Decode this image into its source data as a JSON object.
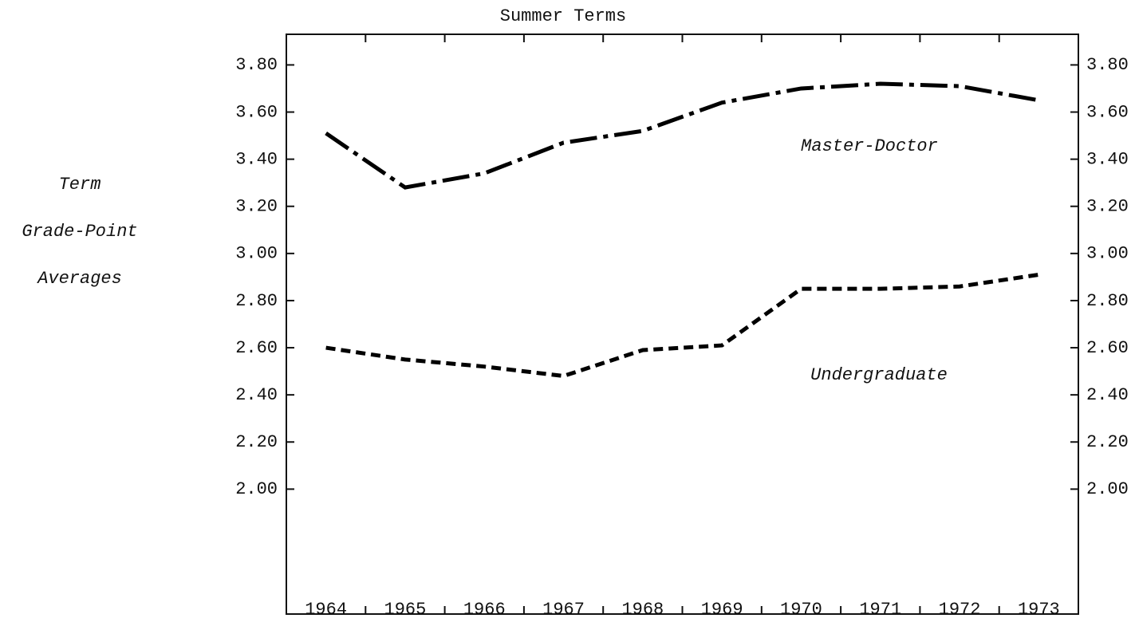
{
  "chart_data": {
    "type": "line",
    "title": "Summer Terms",
    "ylabel": [
      "Term",
      "Grade-Point",
      "Averages"
    ],
    "categories": [
      "1964",
      "1965",
      "1966",
      "1967",
      "1968",
      "1969",
      "1970",
      "1971",
      "1972",
      "1973"
    ],
    "series": [
      {
        "name": "Master-Doctor",
        "color": "#000000",
        "style": "dashdot",
        "values": [
          3.51,
          3.28,
          3.34,
          3.47,
          3.52,
          3.64,
          3.7,
          3.72,
          3.71,
          3.65
        ]
      },
      {
        "name": "Undergraduate",
        "color": "#000000",
        "style": "dashed",
        "values": [
          2.6,
          2.55,
          2.52,
          2.48,
          2.59,
          2.61,
          2.85,
          2.85,
          2.86,
          2.91
        ]
      }
    ],
    "ylim": [
      1.47,
      3.93
    ],
    "yticks": [
      {
        "value": 2.0,
        "label": "2.00"
      },
      {
        "value": 2.2,
        "label": "2.20"
      },
      {
        "value": 2.4,
        "label": "2.40"
      },
      {
        "value": 2.6,
        "label": "2.60"
      },
      {
        "value": 2.8,
        "label": "2.80"
      },
      {
        "value": 3.0,
        "label": "3.00"
      },
      {
        "value": 3.2,
        "label": "3.20"
      },
      {
        "value": 3.4,
        "label": "3.40"
      },
      {
        "value": 3.6,
        "label": "3.60"
      },
      {
        "value": 3.8,
        "label": "3.80"
      }
    ],
    "y2lim": [
      1.47,
      3.93
    ],
    "y2ticks": [
      {
        "value": 2.0,
        "label": "2.00"
      },
      {
        "value": 2.2,
        "label": "2.20"
      },
      {
        "value": 2.4,
        "label": "2.40"
      },
      {
        "value": 2.6,
        "label": "2.60"
      },
      {
        "value": 2.8,
        "label": "2.80"
      },
      {
        "value": 3.0,
        "label": "3.00"
      },
      {
        "value": 3.2,
        "label": "3.20"
      },
      {
        "value": 3.4,
        "label": "3.40"
      },
      {
        "value": 3.6,
        "label": "3.60"
      },
      {
        "value": 3.8,
        "label": "3.80"
      }
    ],
    "grid": false
  }
}
